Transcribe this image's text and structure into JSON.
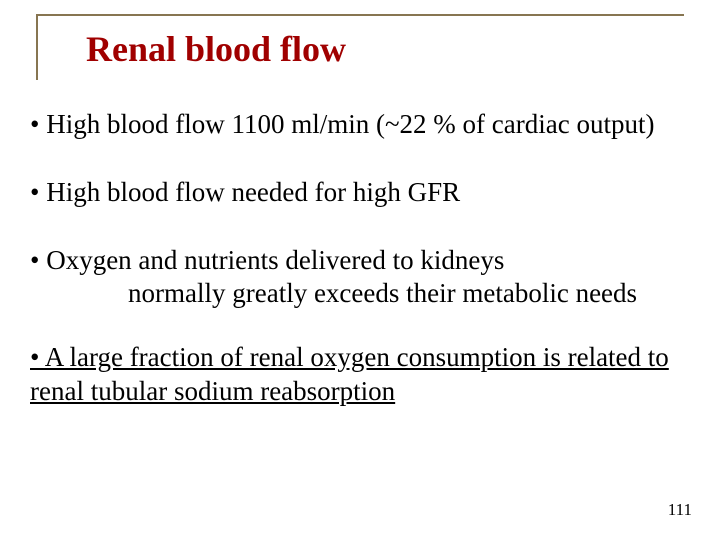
{
  "colors": {
    "rule": "#877551",
    "title": "#a00000",
    "text": "#000000",
    "background": "#ffffff"
  },
  "typography": {
    "title_fontsize_pt": 27,
    "body_fontsize_pt": 20,
    "slidenum_fontsize_pt": 13,
    "family": "Times New Roman"
  },
  "title": "Renal blood flow",
  "bullets": {
    "b1": "• High blood flow 1100 ml/min (~22 % of cardiac output)",
    "b2": "• High blood flow needed for high GFR",
    "b3_line1": "• Oxygen and nutrients delivered to kidneys",
    "b3_line2": "normally greatly exceeds their metabolic needs",
    "b4_underlined": "• A large fraction of renal oxygen consumption is related to renal tubular sodium reabsorption"
  },
  "slide_number": "111"
}
